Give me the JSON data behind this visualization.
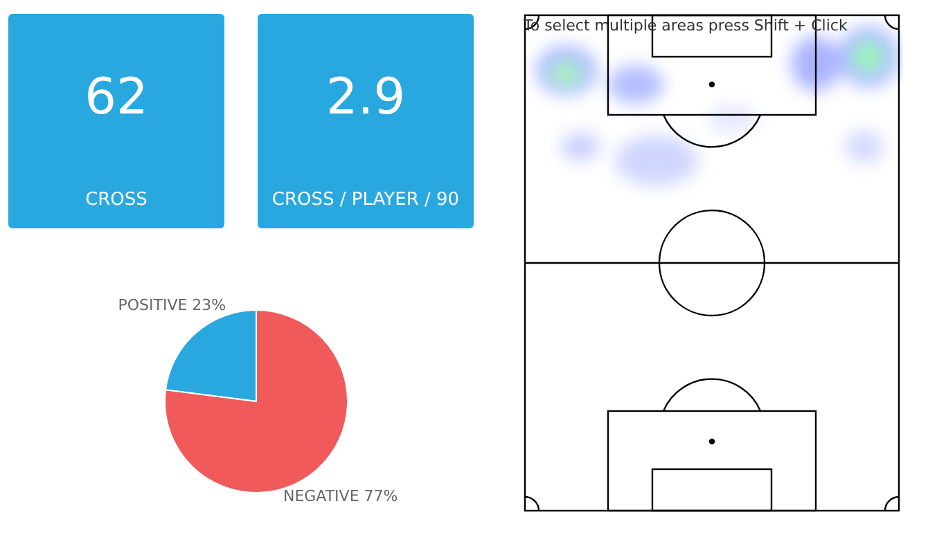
{
  "chart_data": [
    {
      "type": "other",
      "annotations": [
        "62",
        "CROSS"
      ]
    },
    {
      "type": "other",
      "annotations": [
        "2.9",
        "CROSS / PLAYER / 90"
      ]
    },
    {
      "type": "pie",
      "categories": [
        "POSITIVE",
        "NEGATIVE"
      ],
      "values": [
        23,
        77
      ],
      "value_labels": [
        "23%",
        "77%"
      ],
      "colors": [
        "#29a8e0",
        "#f05a5a"
      ]
    },
    {
      "type": "other",
      "annotations": [
        "To select multiple areas press Shift + Click"
      ]
    }
  ]
}
